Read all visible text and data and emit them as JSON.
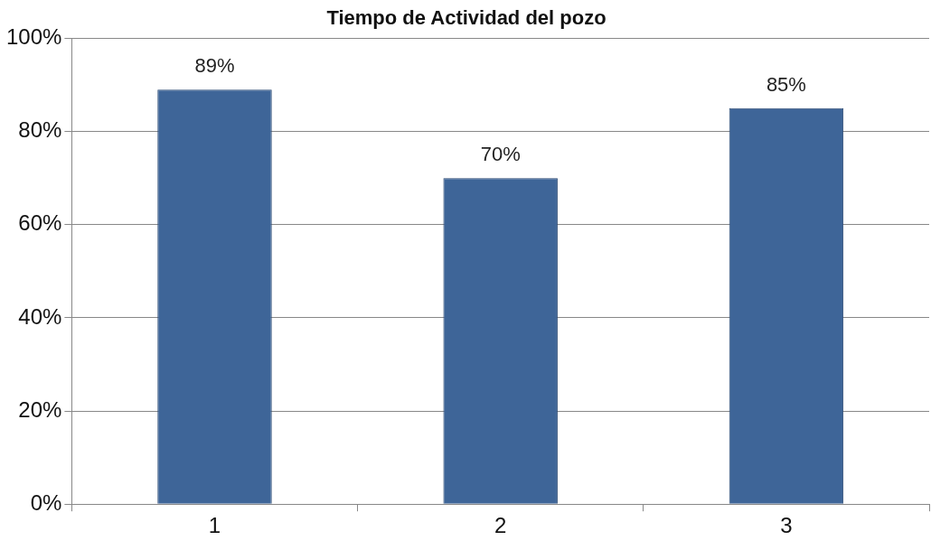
{
  "chart_data": {
    "type": "bar",
    "title": "Tiempo de Actividad del pozo",
    "categories": [
      "1",
      "2",
      "3"
    ],
    "values": [
      89,
      70,
      85
    ],
    "value_labels": [
      "89%",
      "70%",
      "85%"
    ],
    "color": "#3e6598",
    "ylim": [
      0,
      100
    ],
    "yticks": [
      {
        "value": 0,
        "label": "0%"
      },
      {
        "value": 20,
        "label": "20%"
      },
      {
        "value": 40,
        "label": "40%"
      },
      {
        "value": 60,
        "label": "60%"
      },
      {
        "value": 80,
        "label": "80%"
      },
      {
        "value": 100,
        "label": "100%"
      }
    ],
    "grid": "y",
    "legend": false
  }
}
